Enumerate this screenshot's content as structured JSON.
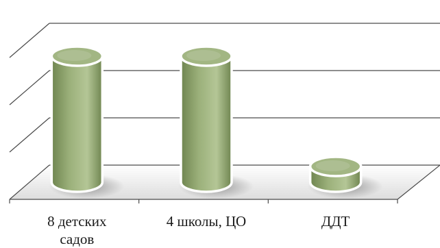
{
  "chart_data": {
    "type": "bar",
    "style": "3d-cylinder",
    "categories": [
      "8 детских\nсадов",
      "4 школы, ЦО",
      "ДДТ"
    ],
    "values": [
      8,
      8,
      1
    ],
    "ylim": [
      0,
      11
    ],
    "grid": true,
    "legend": "none",
    "colors": {
      "bar_dark": "#6f8550",
      "bar_mid": "#9bb07a",
      "bar_light": "#b4c696",
      "bar_top": "#a2b683",
      "bar_outline": "#ffffff",
      "grid": "#4a4a4a",
      "floor": "#d9d9d9"
    }
  }
}
